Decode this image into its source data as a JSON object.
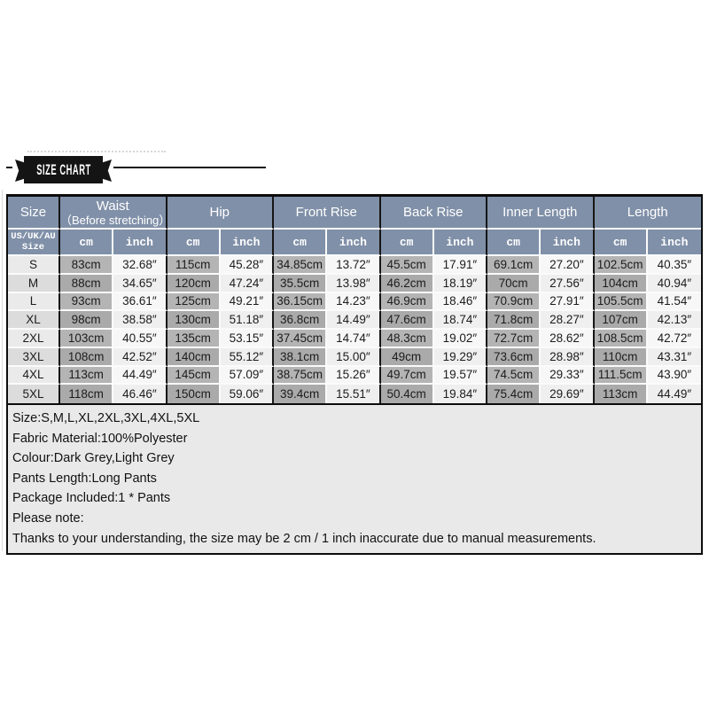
{
  "ribbon": {
    "title": "SIZE CHART"
  },
  "table": {
    "size_header": "Size",
    "size_subheader_lines": [
      "US/UK/AU",
      "Size"
    ],
    "unit_headers": [
      "cm",
      "inch"
    ],
    "groups": [
      {
        "label": "Waist",
        "sublabel": "（Before stretching）"
      },
      {
        "label": "Hip"
      },
      {
        "label": "Front Rise"
      },
      {
        "label": "Back Rise"
      },
      {
        "label": "Inner Length"
      },
      {
        "label": "Length"
      }
    ],
    "rows": [
      {
        "size": "S",
        "values": [
          "83cm",
          "32.68″",
          "115cm",
          "45.28″",
          "34.85cm",
          "13.72″",
          "45.5cm",
          "17.91″",
          "69.1cm",
          "27.20″",
          "102.5cm",
          "40.35″"
        ]
      },
      {
        "size": "M",
        "values": [
          "88cm",
          "34.65″",
          "120cm",
          "47.24″",
          "35.5cm",
          "13.98″",
          "46.2cm",
          "18.19″",
          "70cm",
          "27.56″",
          "104cm",
          "40.94″"
        ]
      },
      {
        "size": "L",
        "values": [
          "93cm",
          "36.61″",
          "125cm",
          "49.21″",
          "36.15cm",
          "14.23″",
          "46.9cm",
          "18.46″",
          "70.9cm",
          "27.91″",
          "105.5cm",
          "41.54″"
        ]
      },
      {
        "size": "XL",
        "values": [
          "98cm",
          "38.58″",
          "130cm",
          "51.18″",
          "36.8cm",
          "14.49″",
          "47.6cm",
          "18.74″",
          "71.8cm",
          "28.27″",
          "107cm",
          "42.13″"
        ]
      },
      {
        "size": "2XL",
        "values": [
          "103cm",
          "40.55″",
          "135cm",
          "53.15″",
          "37.45cm",
          "14.74″",
          "48.3cm",
          "19.02″",
          "72.7cm",
          "28.62″",
          "108.5cm",
          "42.72″"
        ]
      },
      {
        "size": "3XL",
        "values": [
          "108cm",
          "42.52″",
          "140cm",
          "55.12″",
          "38.1cm",
          "15.00″",
          "49cm",
          "19.29″",
          "73.6cm",
          "28.98″",
          "110cm",
          "43.31″"
        ]
      },
      {
        "size": "4XL",
        "values": [
          "113cm",
          "44.49″",
          "145cm",
          "57.09″",
          "38.75cm",
          "15.26″",
          "49.7cm",
          "19.57″",
          "74.5cm",
          "29.33″",
          "111.5cm",
          "43.90″"
        ]
      },
      {
        "size": "5XL",
        "values": [
          "118cm",
          "46.46″",
          "150cm",
          "59.06″",
          "39.4cm",
          "15.51″",
          "50.4cm",
          "19.84″",
          "75.4cm",
          "29.69″",
          "113cm",
          "44.49″"
        ]
      }
    ]
  },
  "notes": {
    "lines": [
      "Size:S,M,L,XL,2XL,3XL,4XL,5XL",
      "Fabric Material:100%Polyester",
      "Colour:Dark Grey,Light Grey",
      "Pants Length:Long Pants",
      "Package Included:1 * Pants",
      "Please note:",
      "Thanks to your understanding, the size may be 2 cm / 1 inch inaccurate due to manual measurements."
    ]
  },
  "colors": {
    "header_bg": "#8090a8",
    "cm_cell_odd": "#b4b4b4",
    "cm_cell_even": "#aaaaaa",
    "inch_cell_odd": "#f7f7f7",
    "inch_cell_even": "#efefef",
    "size_cell_odd": "#eaeaea",
    "size_cell_even": "#dcdcdc",
    "notes_bg": "#e9e9e9",
    "border_dark": "#161616",
    "ribbon_bg": "#141414"
  }
}
